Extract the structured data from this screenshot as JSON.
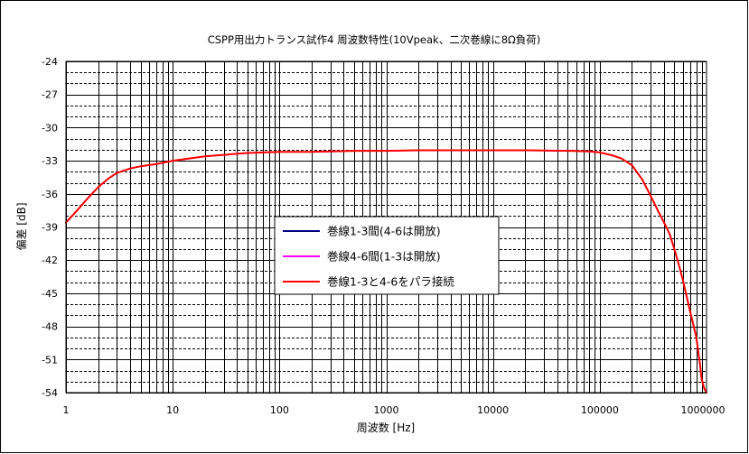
{
  "chart_data": {
    "type": "line",
    "title": "CSPP用出力トランス試作4 周波数特性(10Vpeak、二次巻線に8Ω負荷)",
    "xlabel": "周波数 [Hz]",
    "ylabel": "偏差 [dB]",
    "xscale": "log",
    "xlim": [
      1,
      1000000
    ],
    "ylim": [
      -54,
      -24
    ],
    "x_ticks": [
      "1",
      "10",
      "100",
      "1000",
      "10000",
      "100000",
      "1000000"
    ],
    "y_ticks": [
      "-24",
      "-27",
      "-30",
      "-33",
      "-36",
      "-39",
      "-42",
      "-45",
      "-48",
      "-51",
      "-54"
    ],
    "grid": true,
    "legend_position": "center",
    "series": [
      {
        "name": "巻線1-3間(4-6は開放)",
        "color": "#000080",
        "x": [
          1,
          1.3,
          1.6,
          2,
          2.5,
          3,
          4,
          5,
          7,
          10,
          20,
          50,
          100,
          200,
          500,
          1000,
          2000,
          5000,
          10000,
          20000,
          50000,
          80000,
          100000,
          130000,
          160000,
          200000,
          250000,
          300000,
          350000,
          400000,
          450000,
          500000,
          550000,
          600000,
          700000,
          800000,
          870000,
          900000,
          950000,
          1000000
        ],
        "y": [
          -38.6,
          -37.4,
          -36.4,
          -35.4,
          -34.6,
          -34.1,
          -33.7,
          -33.5,
          -33.3,
          -33.0,
          -32.6,
          -32.3,
          -32.2,
          -32.2,
          -32.1,
          -32.1,
          -32.05,
          -32.05,
          -32.05,
          -32.05,
          -32.1,
          -32.15,
          -32.25,
          -32.5,
          -32.8,
          -33.4,
          -34.7,
          -36.2,
          -37.5,
          -38.6,
          -39.6,
          -41.0,
          -42.4,
          -43.8,
          -46.6,
          -48.9,
          -51.5,
          -52.8,
          -53.6,
          -54.0
        ]
      },
      {
        "name": "巻線4-6間(1-3は開放)",
        "color": "#FF00FF",
        "x": [
          1,
          1.3,
          1.6,
          2,
          2.5,
          3,
          4,
          5,
          7,
          10,
          20,
          50,
          100,
          200,
          500,
          1000,
          2000,
          5000,
          10000,
          20000,
          50000,
          80000,
          100000,
          130000,
          160000,
          200000,
          250000,
          300000,
          350000,
          400000,
          450000,
          500000,
          550000,
          600000,
          700000,
          800000,
          870000,
          900000,
          950000,
          1000000
        ],
        "y": [
          -38.6,
          -37.4,
          -36.4,
          -35.4,
          -34.6,
          -34.1,
          -33.7,
          -33.5,
          -33.3,
          -33.0,
          -32.6,
          -32.3,
          -32.2,
          -32.2,
          -32.1,
          -32.1,
          -32.05,
          -32.05,
          -32.05,
          -32.05,
          -32.1,
          -32.15,
          -32.25,
          -32.5,
          -32.8,
          -33.4,
          -34.7,
          -36.2,
          -37.5,
          -38.6,
          -39.6,
          -41.0,
          -42.4,
          -43.8,
          -46.6,
          -48.9,
          -51.5,
          -52.8,
          -53.6,
          -54.0
        ]
      },
      {
        "name": "巻線1-3と4-6をパラ接続",
        "color": "#FF0000",
        "x": [
          1,
          1.3,
          1.6,
          2,
          2.5,
          3,
          4,
          5,
          7,
          10,
          20,
          50,
          100,
          200,
          500,
          1000,
          2000,
          5000,
          10000,
          20000,
          50000,
          80000,
          100000,
          130000,
          160000,
          200000,
          250000,
          300000,
          350000,
          400000,
          450000,
          500000,
          550000,
          600000,
          700000,
          800000,
          870000,
          900000,
          950000,
          1000000
        ],
        "y": [
          -38.6,
          -37.4,
          -36.4,
          -35.4,
          -34.6,
          -34.1,
          -33.7,
          -33.5,
          -33.3,
          -33.0,
          -32.6,
          -32.3,
          -32.2,
          -32.2,
          -32.1,
          -32.1,
          -32.05,
          -32.05,
          -32.05,
          -32.05,
          -32.1,
          -32.15,
          -32.25,
          -32.5,
          -32.8,
          -33.4,
          -34.7,
          -36.2,
          -37.5,
          -38.6,
          -39.6,
          -41.0,
          -42.4,
          -43.8,
          -46.6,
          -48.9,
          -51.5,
          -52.8,
          -53.6,
          -54.0
        ]
      }
    ]
  }
}
